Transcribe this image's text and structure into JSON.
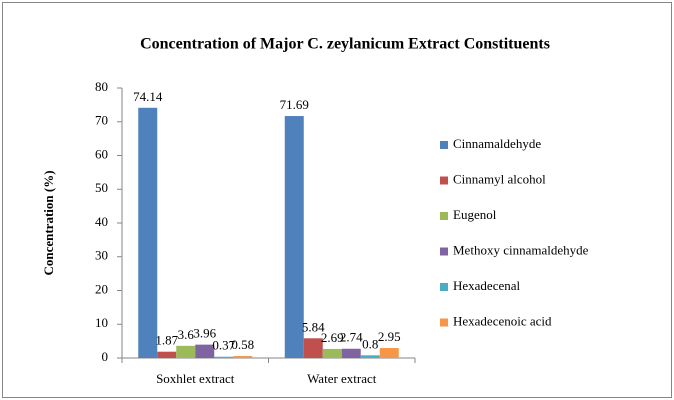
{
  "chart_data": {
    "type": "bar",
    "title": "Concentration of Major C. zeylanicum Extract Constituents",
    "y_label": "Concentration (%)",
    "categories": [
      "Soxhlet extract",
      "Water extract"
    ],
    "series": [
      {
        "name": "Cinnamaldehyde",
        "color": "#4f81bd",
        "values": [
          74.14,
          71.69
        ]
      },
      {
        "name": "Cinnamyl alcohol",
        "color": "#c0504d",
        "values": [
          1.87,
          5.84
        ]
      },
      {
        "name": "Eugenol",
        "color": "#9bbb59",
        "values": [
          3.6,
          2.69
        ]
      },
      {
        "name": "Methoxy cinnamaldehyde",
        "color": "#8064a2",
        "values": [
          3.96,
          2.74
        ]
      },
      {
        "name": "Hexadecenal",
        "color": "#4bacc6",
        "values": [
          0.37,
          0.8
        ]
      },
      {
        "name": "Hexadecenoic acid",
        "color": "#f79646",
        "values": [
          0.58,
          2.95
        ]
      }
    ],
    "ylim": [
      0,
      80
    ],
    "yticks": [
      0,
      10,
      20,
      30,
      40,
      50,
      60,
      70,
      80
    ],
    "grid": false,
    "legend": "right"
  }
}
